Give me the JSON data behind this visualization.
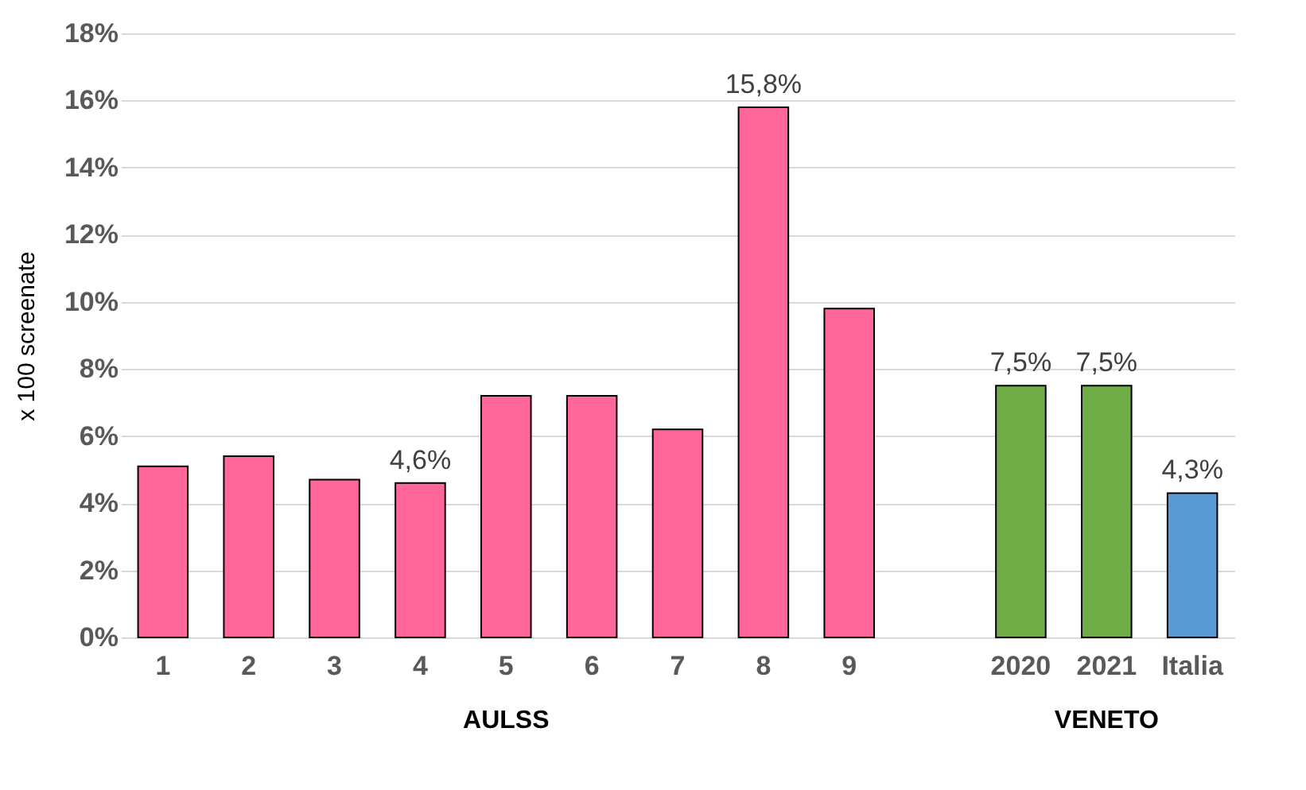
{
  "chart_data": {
    "type": "bar",
    "ylabel": "x 100 screenate",
    "categories": [
      "1",
      "2",
      "3",
      "4",
      "5",
      "6",
      "7",
      "8",
      "9",
      null,
      "2020",
      "2021",
      "Italia"
    ],
    "values": [
      5.1,
      5.4,
      4.7,
      4.6,
      7.2,
      7.2,
      6.2,
      15.8,
      9.8,
      null,
      7.5,
      7.5,
      4.3
    ],
    "colors": [
      "#ff6699",
      "#ff6699",
      "#ff6699",
      "#ff6699",
      "#ff6699",
      "#ff6699",
      "#ff6699",
      "#ff6699",
      "#ff6699",
      "#ff6699",
      "#70ad47",
      "#70ad47",
      "#5b9bd5"
    ],
    "value_labels": [
      null,
      null,
      null,
      "4,6%",
      null,
      null,
      null,
      "15,8%",
      null,
      null,
      "7,5%",
      "7,5%",
      "4,3%"
    ],
    "ylim": [
      0,
      18
    ],
    "yticks": [
      {
        "value": 0,
        "label": "0%"
      },
      {
        "value": 2,
        "label": "2%"
      },
      {
        "value": 4,
        "label": "4%"
      },
      {
        "value": 6,
        "label": "6%"
      },
      {
        "value": 8,
        "label": "8%"
      },
      {
        "value": 10,
        "label": "10%"
      },
      {
        "value": 12,
        "label": "12%"
      },
      {
        "value": 14,
        "label": "14%"
      },
      {
        "value": 16,
        "label": "16%"
      },
      {
        "value": 18,
        "label": "18%"
      }
    ],
    "grid": "y",
    "annotations": [
      "AULSS",
      "VENETO"
    ]
  }
}
